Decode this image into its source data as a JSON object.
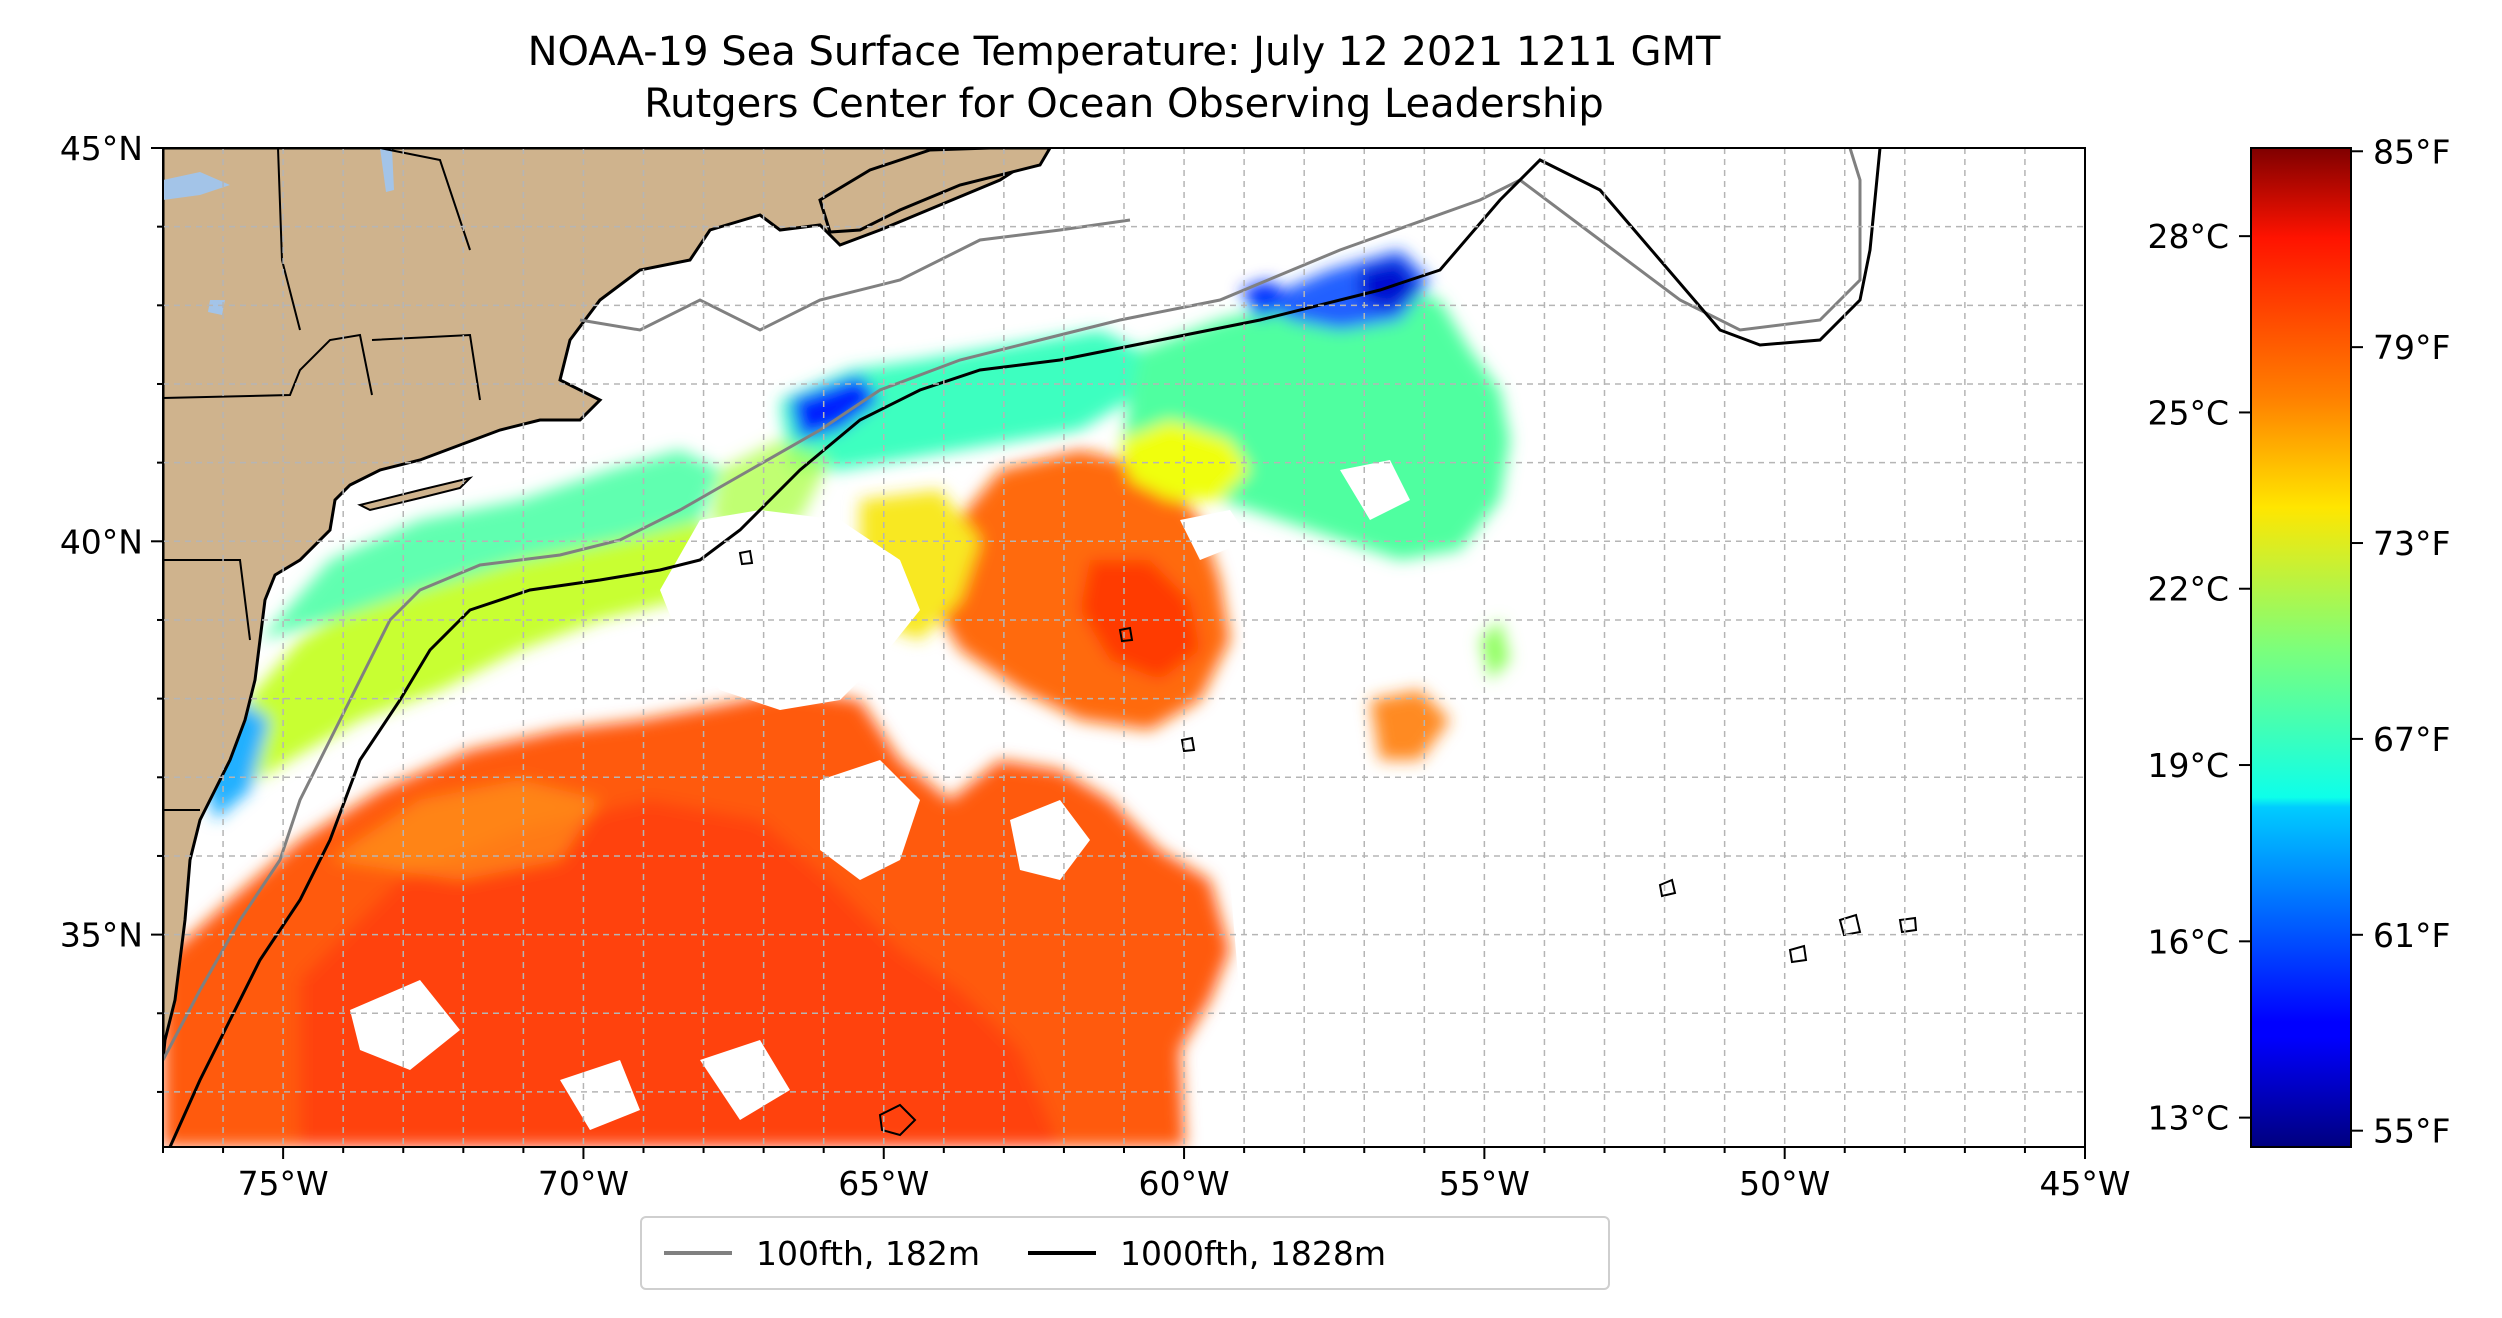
{
  "title": {
    "line1": "NOAA-19 Sea Surface Temperature: July 12 2021 1211 GMT",
    "line2": "Rutgers Center for Ocean Observing Leadership"
  },
  "map": {
    "lon_range": [
      -77,
      -45
    ],
    "lat_range": [
      32.3,
      45
    ],
    "x_ticks": [
      -75,
      -70,
      -65,
      -60,
      -55,
      -50,
      -45
    ],
    "x_tick_labels": [
      "75°W",
      "70°W",
      "65°W",
      "60°W",
      "55°W",
      "50°W",
      "45°W"
    ],
    "y_ticks": [
      35,
      40,
      45
    ],
    "y_tick_labels": [
      "35°N",
      "40°N",
      "45°N"
    ],
    "gridlines": true,
    "colors": {
      "land": "#cfb38d",
      "lakes": "#a3c4e8",
      "ocean_background": "#ffffff",
      "grid": "#b5b5b5"
    }
  },
  "colorbar": {
    "colormap": "jet",
    "range_celsius": [
      12.5,
      29.5
    ],
    "celsius_ticks": [
      13,
      16,
      19,
      22,
      25,
      28
    ],
    "celsius_labels": [
      "13°C",
      "16°C",
      "19°C",
      "22°C",
      "25°C",
      "28°C"
    ],
    "fahrenheit_ticks": [
      55,
      61,
      67,
      73,
      79,
      85
    ],
    "fahrenheit_labels": [
      "55°F",
      "61°F",
      "67°F",
      "73°F",
      "79°F",
      "85°F"
    ]
  },
  "legend": {
    "location": "bottom-center",
    "items": [
      {
        "label": "100fth, 182m",
        "color": "#808080"
      },
      {
        "label": "1000fth, 1828m",
        "color": "#000000"
      }
    ]
  }
}
